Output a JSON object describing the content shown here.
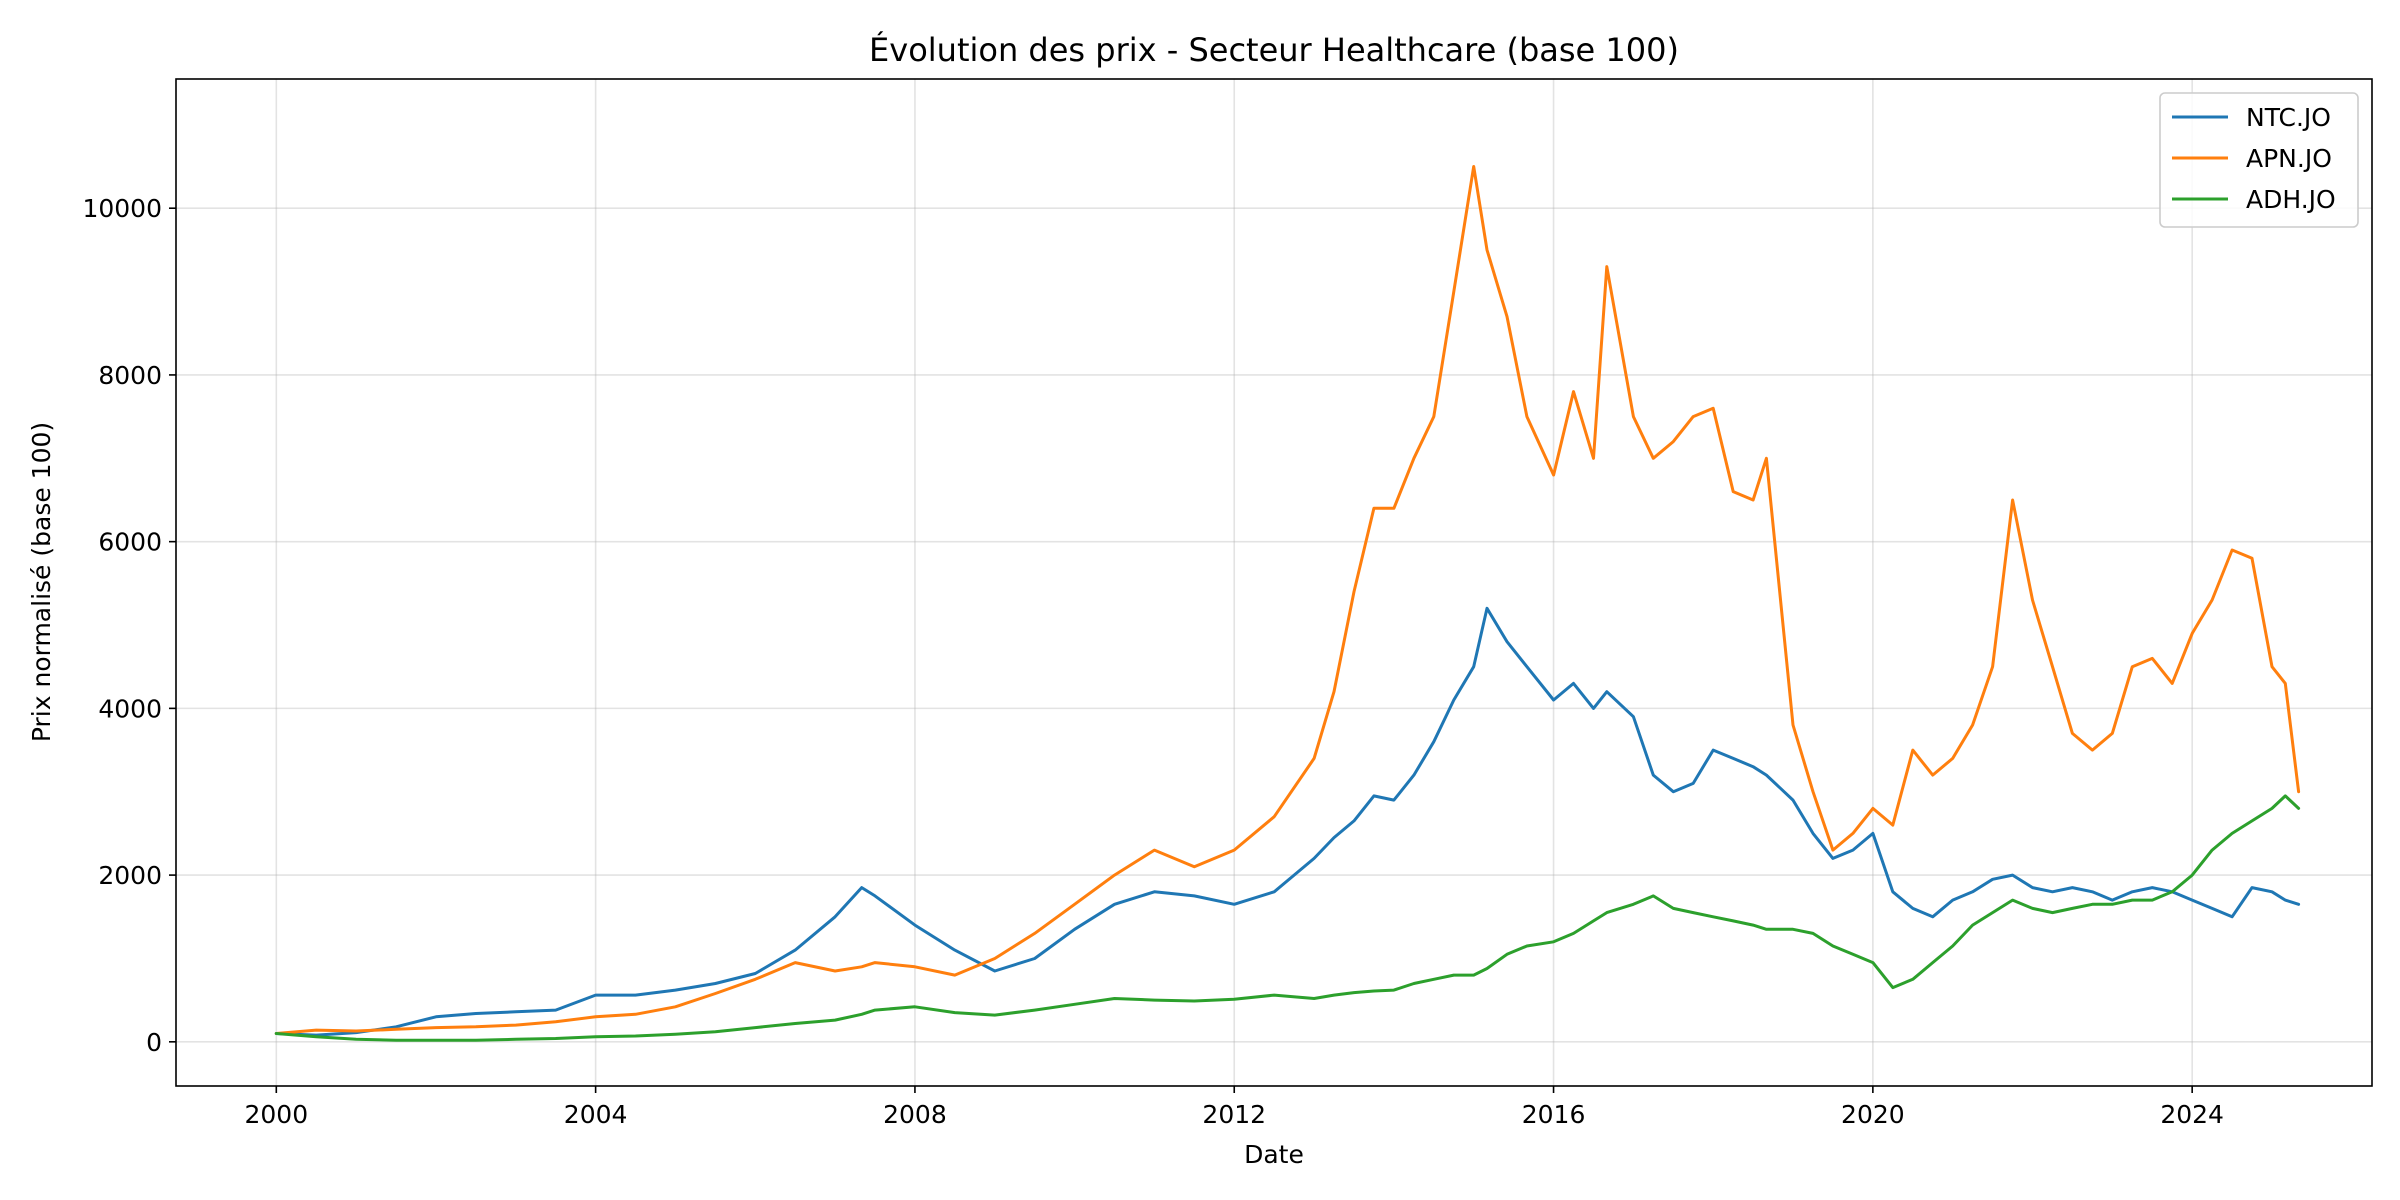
{
  "chart_data": {
    "type": "line",
    "title": "Évolution des prix - Secteur Healthcare (base 100)",
    "xlabel": "Date",
    "ylabel": "Prix normalisé (base 100)",
    "x_axis_type": "date",
    "xlim": [
      "1998-09-29",
      "2026-04-02"
    ],
    "ylim": [
      -530,
      11550
    ],
    "x_ticks": [
      2000,
      2004,
      2008,
      2012,
      2016,
      2020,
      2024
    ],
    "y_ticks": [
      0,
      2000,
      4000,
      6000,
      8000,
      10000
    ],
    "grid": true,
    "legend_position": "top-right",
    "x": [
      "2000-01",
      "2000-07",
      "2001-01",
      "2001-07",
      "2002-01",
      "2002-07",
      "2003-01",
      "2003-07",
      "2004-01",
      "2004-07",
      "2005-01",
      "2005-07",
      "2006-01",
      "2006-07",
      "2007-01",
      "2007-05",
      "2007-07",
      "2008-01",
      "2008-07",
      "2009-01",
      "2009-07",
      "2010-01",
      "2010-07",
      "2011-01",
      "2011-07",
      "2012-01",
      "2012-07",
      "2013-01",
      "2013-04",
      "2013-07",
      "2013-10",
      "2014-01",
      "2014-04",
      "2014-07",
      "2014-10",
      "2015-01",
      "2015-03",
      "2015-06",
      "2015-09",
      "2016-01",
      "2016-04",
      "2016-07",
      "2016-09",
      "2017-01",
      "2017-04",
      "2017-07",
      "2017-10",
      "2018-01",
      "2018-04",
      "2018-07",
      "2018-09",
      "2019-01",
      "2019-04",
      "2019-07",
      "2019-10",
      "2020-01",
      "2020-04",
      "2020-07",
      "2020-10",
      "2021-01",
      "2021-04",
      "2021-07",
      "2021-10",
      "2022-01",
      "2022-04",
      "2022-07",
      "2022-10",
      "2023-01",
      "2023-04",
      "2023-07",
      "2023-10",
      "2024-01",
      "2024-04",
      "2024-07",
      "2024-10",
      "2025-01",
      "2025-03",
      "2025-05"
    ],
    "series": [
      {
        "name": "NTC.JO",
        "color": "#1f77b4",
        "values": [
          100,
          80,
          110,
          180,
          300,
          340,
          360,
          380,
          560,
          560,
          620,
          700,
          820,
          1100,
          1500,
          1850,
          1750,
          1400,
          1100,
          850,
          1000,
          1350,
          1650,
          1800,
          1750,
          1650,
          1800,
          2200,
          2450,
          2650,
          2950,
          2900,
          3200,
          3600,
          4100,
          4500,
          5200,
          4800,
          4500,
          4100,
          4300,
          4000,
          4200,
          3900,
          3200,
          3000,
          3100,
          3500,
          3400,
          3300,
          3200,
          2900,
          2500,
          2200,
          2300,
          2500,
          1800,
          1600,
          1500,
          1700,
          1800,
          1950,
          2000,
          1850,
          1800,
          1850,
          1800,
          1700,
          1800,
          1850,
          1800,
          1700,
          1600,
          1500,
          1850,
          1800,
          1700,
          1650
        ]
      },
      {
        "name": "APN.JO",
        "color": "#ff7f0e",
        "values": [
          100,
          140,
          130,
          150,
          170,
          180,
          200,
          240,
          300,
          330,
          420,
          580,
          750,
          950,
          850,
          900,
          950,
          900,
          800,
          1000,
          1300,
          1650,
          2000,
          2300,
          2100,
          2300,
          2700,
          3400,
          4200,
          5400,
          6400,
          6400,
          7000,
          7500,
          9000,
          10500,
          9500,
          8700,
          7500,
          6800,
          7800,
          7000,
          9300,
          7500,
          7000,
          7200,
          7500,
          7600,
          6600,
          6500,
          7000,
          3800,
          3000,
          2300,
          2500,
          2800,
          2600,
          3500,
          3200,
          3400,
          3800,
          4500,
          6500,
          5300,
          4500,
          3700,
          3500,
          3700,
          4500,
          4600,
          4300,
          4900,
          5300,
          5900,
          5800,
          4500,
          4300,
          3000
        ]
      },
      {
        "name": "ADH.JO",
        "color": "#2ca02c",
        "values": [
          100,
          60,
          30,
          20,
          20,
          20,
          30,
          40,
          60,
          70,
          90,
          120,
          170,
          220,
          260,
          330,
          380,
          420,
          350,
          320,
          380,
          450,
          520,
          500,
          490,
          510,
          560,
          520,
          560,
          590,
          610,
          620,
          700,
          750,
          800,
          800,
          880,
          1050,
          1150,
          1200,
          1300,
          1450,
          1550,
          1650,
          1750,
          1600,
          1550,
          1500,
          1450,
          1400,
          1350,
          1350,
          1300,
          1150,
          1050,
          950,
          650,
          750,
          950,
          1150,
          1400,
          1550,
          1700,
          1600,
          1550,
          1600,
          1650,
          1650,
          1700,
          1700,
          1800,
          2000,
          2300,
          2500,
          2650,
          2800,
          2950,
          2800
        ]
      }
    ]
  }
}
